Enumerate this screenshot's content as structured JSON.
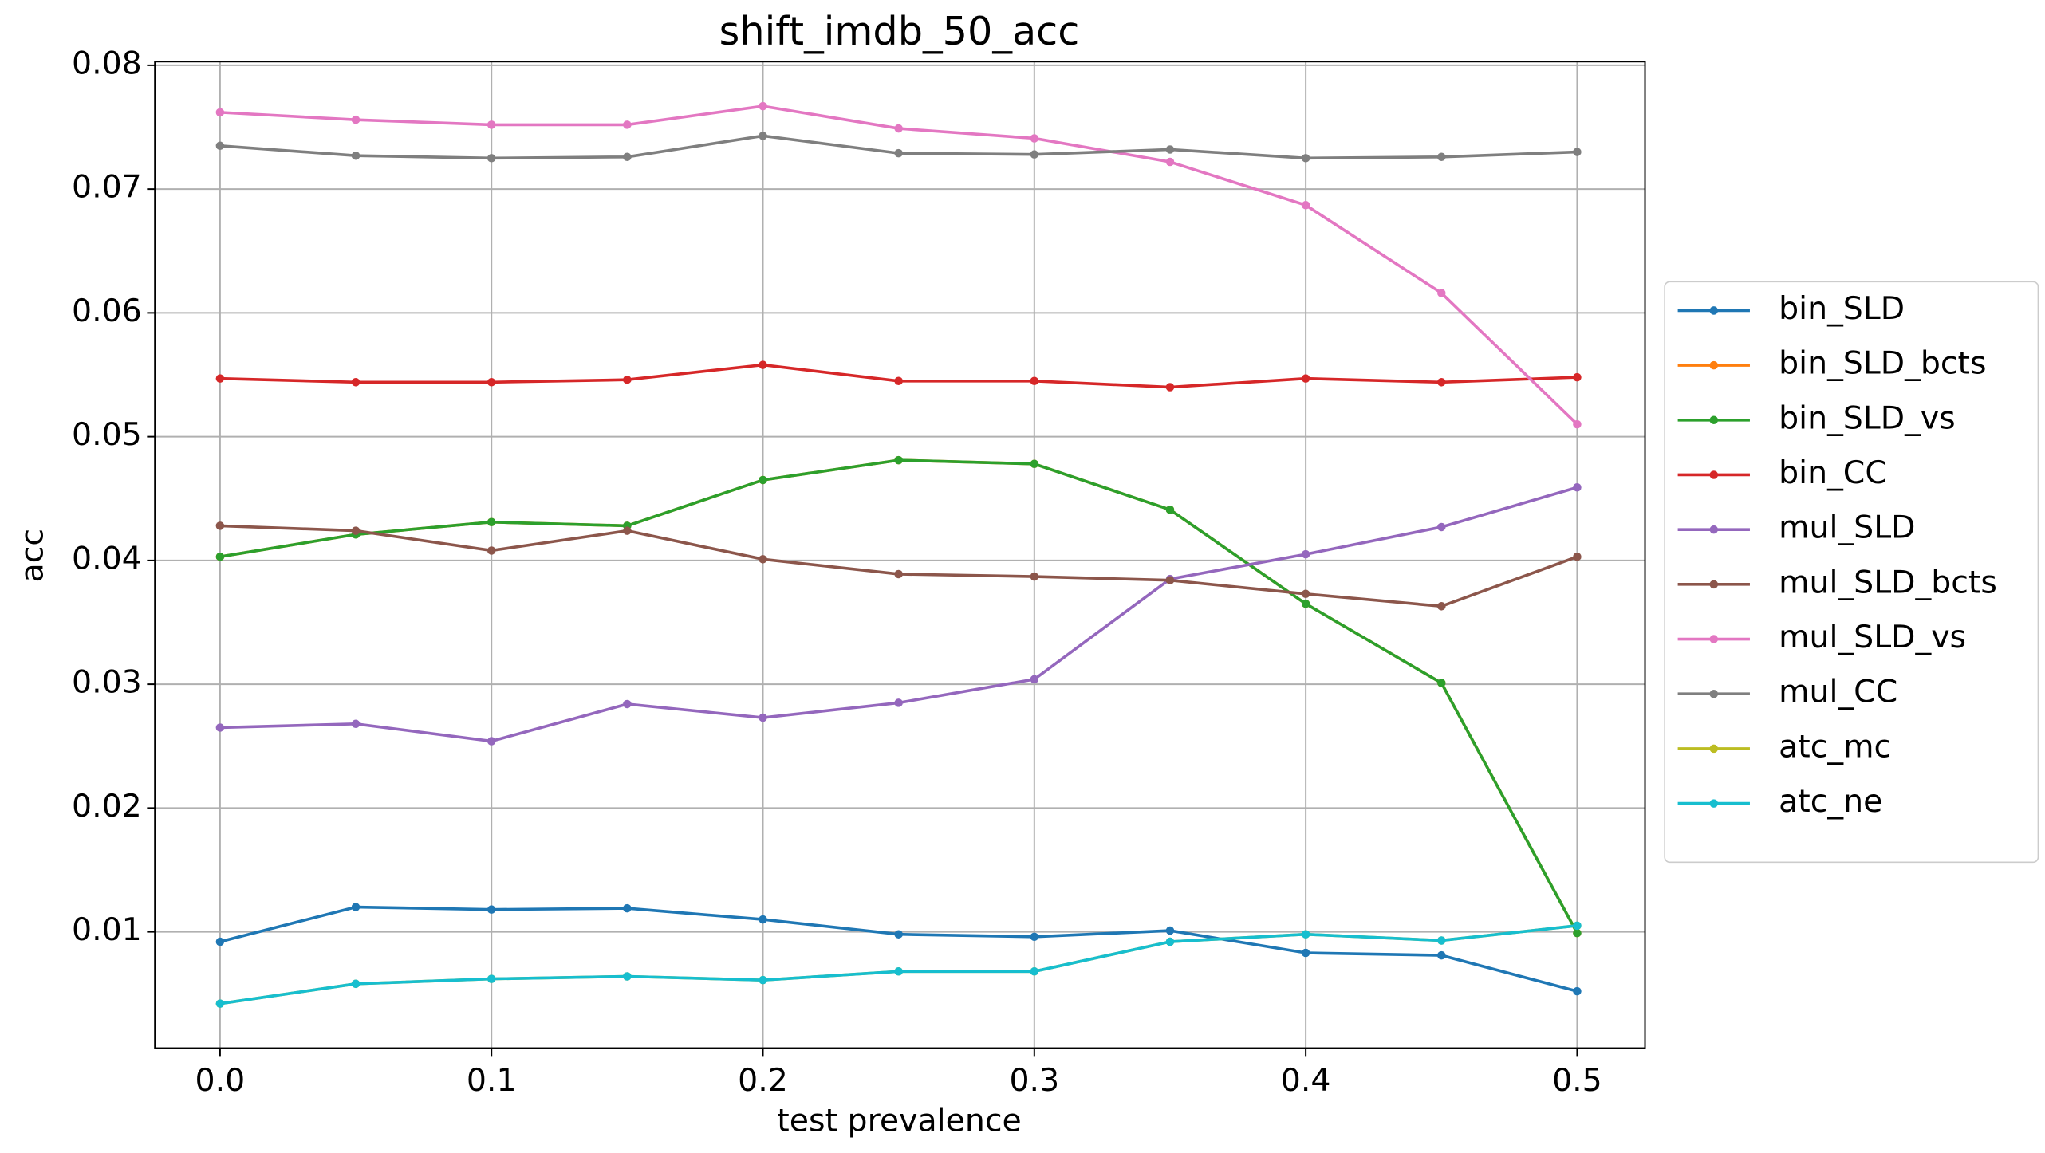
{
  "chart_data": {
    "type": "line",
    "title": "shift_imdb_50_acc",
    "xlabel": "test prevalence",
    "ylabel": "acc",
    "x": [
      0,
      0.05,
      0.1,
      0.15,
      0.2,
      0.25,
      0.3,
      0.35,
      0.4,
      0.45,
      0.5
    ],
    "series": [
      {
        "name": "bin_SLD",
        "color": "#1f77b4",
        "values": [
          0.0092,
          0.012,
          0.0118,
          0.0119,
          0.011,
          0.0098,
          0.0096,
          0.0101,
          0.0083,
          0.0081,
          0.0052
        ]
      },
      {
        "name": "bin_SLD_bcts",
        "color": "#ff7f0e",
        "values": [
          0.0403,
          0.0421,
          0.0431,
          0.0428,
          0.0465,
          0.0481,
          0.0478,
          0.0441,
          0.0365,
          0.0301,
          0.0099
        ]
      },
      {
        "name": "bin_SLD_vs",
        "color": "#2ca02c",
        "values": [
          0.0403,
          0.0421,
          0.0431,
          0.0428,
          0.0465,
          0.0481,
          0.0478,
          0.0441,
          0.0365,
          0.0301,
          0.0099
        ]
      },
      {
        "name": "bin_CC",
        "color": "#d62728",
        "values": [
          0.0547,
          0.0544,
          0.0544,
          0.0546,
          0.0558,
          0.0545,
          0.0545,
          0.054,
          0.0547,
          0.0544,
          0.0548
        ]
      },
      {
        "name": "mul_SLD",
        "color": "#9467bd",
        "values": [
          0.0265,
          0.0268,
          0.0254,
          0.0284,
          0.0273,
          0.0285,
          0.0304,
          0.0385,
          0.0405,
          0.0427,
          0.0459
        ]
      },
      {
        "name": "mul_SLD_bcts",
        "color": "#8c564b",
        "values": [
          0.0428,
          0.0424,
          0.0408,
          0.0424,
          0.0401,
          0.0389,
          0.0387,
          0.0384,
          0.0373,
          0.0363,
          0.0403
        ]
      },
      {
        "name": "mul_SLD_vs",
        "color": "#e377c2",
        "values": [
          0.0762,
          0.0756,
          0.0752,
          0.0752,
          0.0767,
          0.0749,
          0.0741,
          0.0722,
          0.0687,
          0.0616,
          0.051
        ]
      },
      {
        "name": "mul_CC",
        "color": "#7f7f7f",
        "values": [
          0.0735,
          0.0727,
          0.0725,
          0.0726,
          0.0743,
          0.0729,
          0.0728,
          0.0732,
          0.0725,
          0.0726,
          0.073
        ]
      },
      {
        "name": "atc_mc",
        "color": "#bcbd22",
        "values": [
          0.0042,
          0.0058,
          0.0062,
          0.0064,
          0.0061,
          0.0068,
          0.0068,
          0.0092,
          0.0098,
          0.0093,
          0.0105
        ]
      },
      {
        "name": "atc_ne",
        "color": "#17becf",
        "values": [
          0.0042,
          0.0058,
          0.0062,
          0.0064,
          0.0061,
          0.0068,
          0.0068,
          0.0092,
          0.0098,
          0.0093,
          0.0105
        ]
      }
    ],
    "xlim": [
      -0.024,
      0.525
    ],
    "xticks": [
      {
        "value": 0,
        "label": "0.0"
      },
      0.1,
      0.2,
      0.3,
      0.4,
      0.5
    ],
    "ylim": [
      0.0006,
      0.0803
    ],
    "yticks": [
      0.01,
      0.02,
      0.03,
      0.04,
      0.05,
      0.06,
      0.07,
      0.08
    ],
    "grid": true,
    "legend": "right"
  }
}
